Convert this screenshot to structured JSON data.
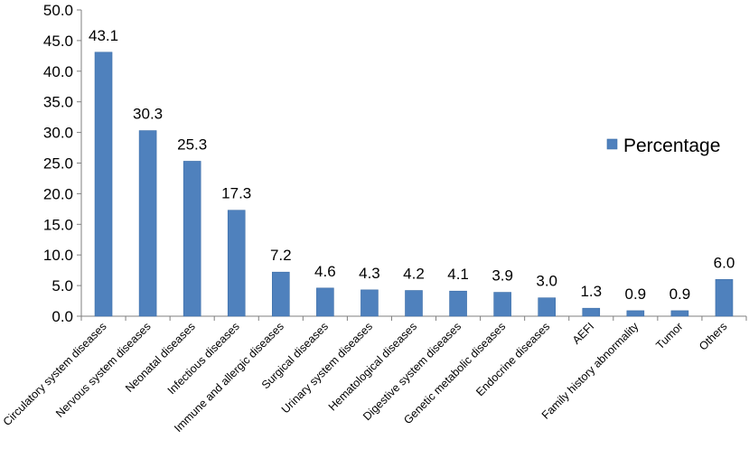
{
  "chart_data": {
    "type": "bar",
    "categories": [
      "Circulatory system diseases",
      "Nervous system diseases",
      "Neonatal diseases",
      "Infectious diseases",
      "Immune and allergic diseases",
      "Surgical diseases",
      "Urinary system diseases",
      "Hematological diseases",
      "Digestive system diseases",
      "Genetic metabolic diseases",
      "Endocrine diseases",
      "AEFI",
      "Family history abnormality",
      "Tumor",
      "Others"
    ],
    "series": [
      {
        "name": "Percentage",
        "values": [
          43.1,
          30.3,
          25.3,
          17.3,
          7.2,
          4.6,
          4.3,
          4.2,
          4.1,
          3.9,
          3.0,
          1.3,
          0.9,
          0.9,
          6.0
        ],
        "data_labels": [
          "43.1",
          "30.3",
          "25.3",
          "17.3",
          "7.2",
          "4.6",
          "4.3",
          "4.2",
          "4.1",
          "3.9",
          "3.0",
          "1.3",
          "0.9",
          "0.9",
          "6.0"
        ]
      }
    ],
    "y_ticks": [
      "0.0",
      "5.0",
      "10.0",
      "15.0",
      "20.0",
      "25.0",
      "30.0",
      "35.0",
      "40.0",
      "45.0",
      "50.0"
    ],
    "ylim": [
      0,
      50
    ],
    "grid": false,
    "legend": {
      "position": "right",
      "label": "Percentage"
    },
    "colors": {
      "bar": "#4f81bd",
      "bar_edge": "#3d6ea8",
      "axis": "#7f7f7f",
      "text": "#000000"
    }
  }
}
